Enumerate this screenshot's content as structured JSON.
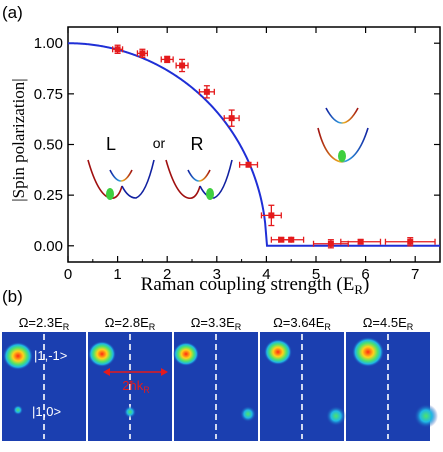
{
  "panel_a_label": "(a)",
  "panel_b_label": "(b)",
  "chart_data": {
    "type": "scatter",
    "title": "",
    "xlabel": "Raman coupling strength (E",
    "xlabel_sub": "R",
    "xlabel_end": ")",
    "ylabel": "|Spin polarization|",
    "xlim": [
      0,
      7.5
    ],
    "ylim": [
      -0.08,
      1.08
    ],
    "x_ticks": [
      0,
      1,
      2,
      3,
      4,
      5,
      6,
      7
    ],
    "y_ticks": [
      0.0,
      0.25,
      0.5,
      0.75,
      1.0
    ],
    "y_tick_labels": [
      "0.00",
      "0.25",
      "0.50",
      "0.75",
      "1.00"
    ],
    "grid": false,
    "series": [
      {
        "kind": "points",
        "color": "#e41a1c",
        "points": [
          {
            "x": 1.0,
            "y": 0.97,
            "xerr": 0.1,
            "yerr": 0.02
          },
          {
            "x": 1.5,
            "y": 0.95,
            "xerr": 0.1,
            "yerr": 0.02
          },
          {
            "x": 2.0,
            "y": 0.92,
            "xerr": 0.12,
            "yerr": 0.015
          },
          {
            "x": 2.3,
            "y": 0.89,
            "xerr": 0.12,
            "yerr": 0.03
          },
          {
            "x": 2.8,
            "y": 0.76,
            "xerr": 0.15,
            "yerr": 0.03
          },
          {
            "x": 3.3,
            "y": 0.63,
            "xerr": 0.15,
            "yerr": 0.04
          },
          {
            "x": 3.64,
            "y": 0.4,
            "xerr": 0.18,
            "yerr": 0.01
          },
          {
            "x": 4.1,
            "y": 0.15,
            "xerr": 0.2,
            "yerr": 0.05
          },
          {
            "x": 4.3,
            "y": 0.03,
            "xerr": 0.2,
            "yerr": 0.01
          },
          {
            "x": 4.5,
            "y": 0.03,
            "xerr": 0.25,
            "yerr": 0.01
          },
          {
            "x": 5.3,
            "y": 0.01,
            "xerr": 0.35,
            "yerr": 0.02
          },
          {
            "x": 5.9,
            "y": 0.02,
            "xerr": 0.4,
            "yerr": 0.01
          },
          {
            "x": 6.9,
            "y": 0.02,
            "xerr": 0.5,
            "yerr": 0.02
          }
        ]
      },
      {
        "kind": "theory_curve",
        "color": "#1f2fd6",
        "formula": "sqrt(1-(x/4)^2) for x<4, 0 for x>=4"
      }
    ],
    "annotations": {
      "left": "L",
      "or": "or",
      "right": "R"
    }
  },
  "images": {
    "panels": [
      {
        "label": "Ω=2.3E",
        "sub": "R"
      },
      {
        "label": "Ω=2.8E",
        "sub": "R"
      },
      {
        "label": "Ω=3.3E",
        "sub": "R"
      },
      {
        "label": "Ω=3.64E",
        "sub": "R"
      },
      {
        "label": "Ω=4.5E",
        "sub": "R"
      }
    ],
    "state_top": "|1,-1>",
    "state_bottom": "|1,0>",
    "momentum_label": "2ħk",
    "momentum_sub": "R",
    "colors": {
      "background": "#1b3fb0",
      "red": "#e41a1c"
    }
  }
}
